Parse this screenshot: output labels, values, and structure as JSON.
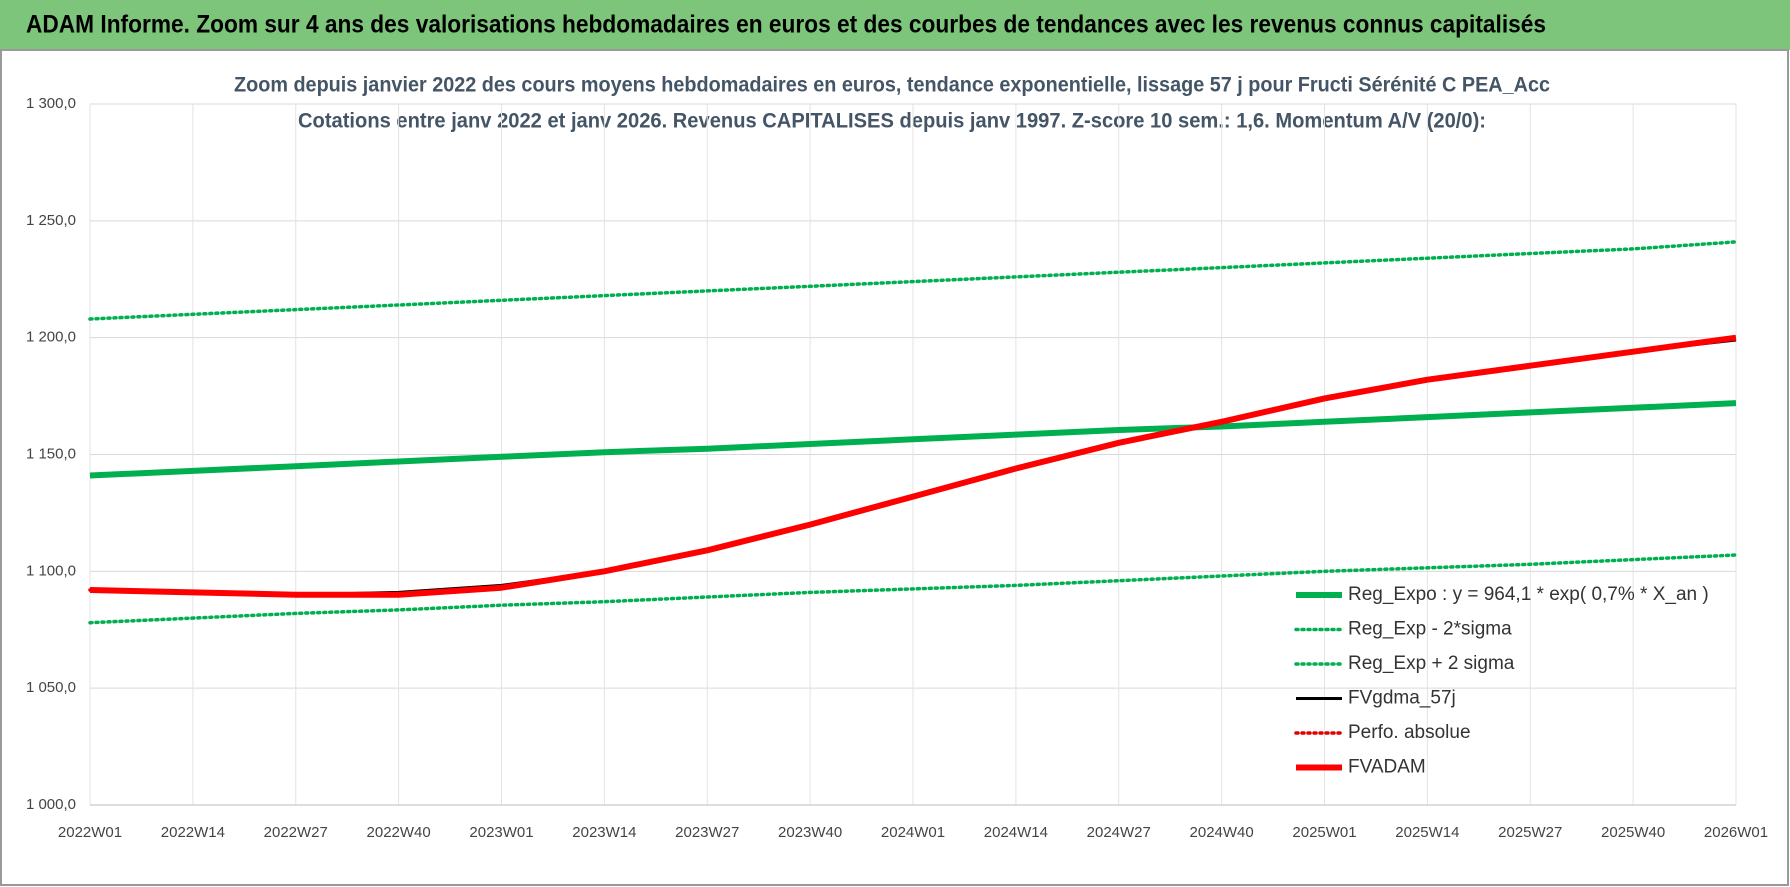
{
  "header": {
    "title": "ADAM Informe. Zoom sur 4 ans des valorisations hebdomadaires en euros et des courbes de tendances avec les revenus connus capitalisés"
  },
  "chart_data": {
    "type": "line",
    "title": "Zoom depuis janvier 2022 des cours moyens hebdomadaires en euros, tendance exponentielle, lissage 57 j pour Fructi Sérénité C PEA_Acc",
    "subtitle": "Cotations entre janv 2022 et janv 2026. Revenus CAPITALISES depuis janv 1997. Z-score 10 sem.: 1,6. Momentum A/V (20/0):",
    "categories": [
      "2022W01",
      "2022W14",
      "2022W27",
      "2022W40",
      "2023W01",
      "2023W14",
      "2023W27",
      "2023W40",
      "2024W01",
      "2024W14",
      "2024W27",
      "2024W40",
      "2025W01",
      "2025W14",
      "2025W27",
      "2025W40",
      "2026W01"
    ],
    "ylim": [
      1000,
      1300
    ],
    "yticks": [
      {
        "value": 1000,
        "label": "1 000,0"
      },
      {
        "value": 1050,
        "label": "1 050,0"
      },
      {
        "value": 1100,
        "label": "1 100,0"
      },
      {
        "value": 1150,
        "label": "1 150,0"
      },
      {
        "value": 1200,
        "label": "1 200,0"
      },
      {
        "value": 1250,
        "label": "1 250,0"
      },
      {
        "value": 1300,
        "label": "1 300,0"
      }
    ],
    "grid": true,
    "legend": "lower right",
    "series": [
      {
        "name": "Reg_Expo : y = 964,1 * exp( 0,7% *  X_an )",
        "color": "#00b050",
        "style": "thick",
        "values": [
          1141,
          1143,
          1145,
          1147,
          1149,
          1151,
          1152.5,
          1154.5,
          1156.5,
          1158.5,
          1160.5,
          1162,
          1164,
          1166,
          1168,
          1170,
          1172
        ]
      },
      {
        "name": "Reg_Exp - 2*sigma",
        "color": "#00b050",
        "style": "dotted",
        "values": [
          1078,
          1080,
          1082,
          1083.5,
          1085.5,
          1087,
          1089,
          1091,
          1092.5,
          1094,
          1096,
          1098,
          1100,
          1101.5,
          1103,
          1105,
          1107
        ]
      },
      {
        "name": "Reg_Exp + 2 sigma",
        "color": "#00b050",
        "style": "dotted",
        "values": [
          1208,
          1210,
          1212,
          1214,
          1216,
          1218,
          1220,
          1222,
          1224,
          1226,
          1228,
          1230,
          1232,
          1234,
          1236,
          1238,
          1241
        ]
      },
      {
        "name": "FVgdma_57j",
        "color": "#000000",
        "style": "solid",
        "values": [
          1092,
          1091,
          1090,
          1091,
          1094,
          1100,
          1109,
          1120,
          1132,
          1144,
          1155,
          1164,
          1174,
          1182,
          1188,
          1194,
          1199
        ]
      },
      {
        "name": "Perfo. absolue",
        "color": "#e00000",
        "style": "dotted",
        "values": [
          1092,
          1091,
          1090,
          1090,
          1093,
          1100,
          1109,
          1120,
          1132,
          1144,
          1155,
          1164,
          1174,
          1182,
          1188,
          1194,
          1200
        ]
      },
      {
        "name": "FVADAM",
        "color": "#ff0000",
        "style": "thick",
        "values": [
          1092,
          1091,
          1090,
          1090,
          1093,
          1100,
          1109,
          1120,
          1132,
          1144,
          1155,
          1164,
          1174,
          1182,
          1188,
          1194,
          1200
        ]
      }
    ]
  }
}
